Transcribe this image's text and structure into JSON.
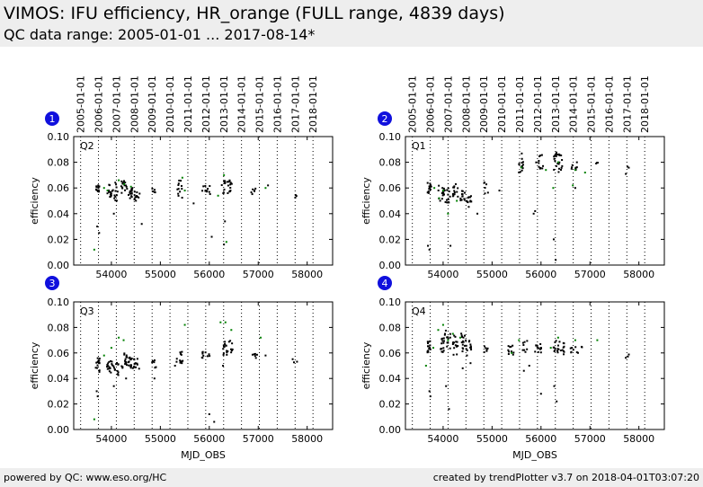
{
  "header": {
    "title": "VIMOS: IFU efficiency, HR_orange (FULL range, 4839 days)",
    "subtitle": "QC data range: 2005-01-01 ... 2017-08-14*"
  },
  "footer": {
    "left": "powered by QC: www.eso.org/HC",
    "right": "created by trendPlotter v3.7 on 2018-04-01T03:07:20"
  },
  "colors": {
    "main": "#000000",
    "highlight": "#008000",
    "badge": "#1010dd",
    "vline": "#000000"
  },
  "top_axis_labels": [
    "2005-01-01",
    "2006-01-01",
    "2007-01-01",
    "2008-01-01",
    "2009-01-01",
    "2010-01-01",
    "2011-01-01",
    "2012-01-01",
    "2013-01-01",
    "2014-01-01",
    "2015-01-01",
    "2016-01-01",
    "2017-01-01",
    "2018-01-01"
  ],
  "top_axis_mjd": [
    53371,
    53736,
    54101,
    54466,
    54832,
    55197,
    55562,
    55927,
    56293,
    56658,
    57023,
    57388,
    57754,
    58119
  ],
  "x_ticks": [
    54000,
    55000,
    56000,
    57000,
    58000
  ],
  "y_ticks": [
    0.0,
    0.02,
    0.04,
    0.06,
    0.08,
    0.1
  ],
  "xlim": [
    53230,
    58520
  ],
  "ylim": [
    0.0,
    0.1
  ],
  "chart_data": [
    {
      "panel": "1",
      "label": "Q2",
      "type": "scatter",
      "ylabel": "efficiency",
      "xlabel": "",
      "clusters": [
        {
          "x": [
            53680,
            53760
          ],
          "y": [
            0.056,
            0.062
          ],
          "n": 14
        },
        {
          "x": [
            53900,
            54020
          ],
          "y": [
            0.052,
            0.064
          ],
          "n": 14
        },
        {
          "x": [
            54030,
            54150
          ],
          "y": [
            0.05,
            0.065
          ],
          "n": 12
        },
        {
          "x": [
            54200,
            54320
          ],
          "y": [
            0.053,
            0.066
          ],
          "n": 16
        },
        {
          "x": [
            54350,
            54450
          ],
          "y": [
            0.052,
            0.06
          ],
          "n": 14
        },
        {
          "x": [
            54460,
            54580
          ],
          "y": [
            0.05,
            0.058
          ],
          "n": 12
        },
        {
          "x": [
            54830,
            54900
          ],
          "y": [
            0.055,
            0.06
          ],
          "n": 5
        },
        {
          "x": [
            55330,
            55480
          ],
          "y": [
            0.052,
            0.066
          ],
          "n": 12
        },
        {
          "x": [
            55850,
            56020
          ],
          "y": [
            0.055,
            0.062
          ],
          "n": 12
        },
        {
          "x": [
            56250,
            56480
          ],
          "y": [
            0.055,
            0.066
          ],
          "n": 22
        },
        {
          "x": [
            56850,
            57000
          ],
          "y": [
            0.055,
            0.06
          ],
          "n": 6
        },
        {
          "x": [
            57700,
            57800
          ],
          "y": [
            0.052,
            0.056
          ],
          "n": 3
        }
      ],
      "outliers_x": [
        53710,
        53750,
        54050,
        54620,
        55680,
        56050,
        56300,
        56320,
        57200
      ],
      "outliers_y": [
        0.03,
        0.025,
        0.04,
        0.032,
        0.048,
        0.022,
        0.016,
        0.034,
        0.062
      ],
      "green_x": [
        53650,
        53850,
        53920,
        54150,
        54260,
        54400,
        55450,
        55500,
        56180,
        56300,
        56350,
        57150
      ],
      "green_y": [
        0.012,
        0.06,
        0.058,
        0.066,
        0.063,
        0.061,
        0.068,
        0.058,
        0.054,
        0.07,
        0.018,
        0.06
      ]
    },
    {
      "panel": "2",
      "label": "Q1",
      "type": "scatter",
      "ylabel": "efficiency",
      "xlabel": "",
      "clusters": [
        {
          "x": [
            53680,
            53760
          ],
          "y": [
            0.055,
            0.064
          ],
          "n": 14
        },
        {
          "x": [
            53900,
            54020
          ],
          "y": [
            0.05,
            0.062
          ],
          "n": 14
        },
        {
          "x": [
            54030,
            54150
          ],
          "y": [
            0.048,
            0.06
          ],
          "n": 12
        },
        {
          "x": [
            54200,
            54320
          ],
          "y": [
            0.052,
            0.064
          ],
          "n": 14
        },
        {
          "x": [
            54350,
            54450
          ],
          "y": [
            0.05,
            0.058
          ],
          "n": 12
        },
        {
          "x": [
            54460,
            54580
          ],
          "y": [
            0.045,
            0.054
          ],
          "n": 12
        },
        {
          "x": [
            54830,
            54920
          ],
          "y": [
            0.055,
            0.066
          ],
          "n": 6
        },
        {
          "x": [
            55530,
            55640
          ],
          "y": [
            0.072,
            0.088
          ],
          "n": 14
        },
        {
          "x": [
            55900,
            56050
          ],
          "y": [
            0.075,
            0.088
          ],
          "n": 12
        },
        {
          "x": [
            56250,
            56450
          ],
          "y": [
            0.072,
            0.088
          ],
          "n": 24
        },
        {
          "x": [
            56600,
            56750
          ],
          "y": [
            0.074,
            0.08
          ],
          "n": 8
        },
        {
          "x": [
            57100,
            57200
          ],
          "y": [
            0.078,
            0.082
          ],
          "n": 3
        },
        {
          "x": [
            57700,
            57800
          ],
          "y": [
            0.07,
            0.078
          ],
          "n": 3
        }
      ],
      "outliers_x": [
        53690,
        53720,
        54150,
        54700,
        55150,
        55850,
        55880,
        56260,
        56300,
        56700
      ],
      "outliers_y": [
        0.015,
        0.012,
        0.015,
        0.04,
        0.058,
        0.04,
        0.042,
        0.02,
        0.004,
        0.06
      ],
      "green_x": [
        53820,
        53920,
        54000,
        54100,
        54280,
        55600,
        56100,
        56250,
        56350,
        56650,
        56700,
        56900
      ],
      "green_y": [
        0.06,
        0.052,
        0.058,
        0.04,
        0.05,
        0.076,
        0.074,
        0.06,
        0.08,
        0.062,
        0.074,
        0.072
      ]
    },
    {
      "panel": "3",
      "label": "Q3",
      "type": "scatter",
      "ylabel": "efficiency",
      "xlabel": "MJD_OBS",
      "clusters": [
        {
          "x": [
            53680,
            53760
          ],
          "y": [
            0.045,
            0.056
          ],
          "n": 14
        },
        {
          "x": [
            53900,
            54020
          ],
          "y": [
            0.044,
            0.054
          ],
          "n": 16
        },
        {
          "x": [
            54030,
            54150
          ],
          "y": [
            0.042,
            0.054
          ],
          "n": 12
        },
        {
          "x": [
            54200,
            54320
          ],
          "y": [
            0.048,
            0.06
          ],
          "n": 16
        },
        {
          "x": [
            54350,
            54450
          ],
          "y": [
            0.048,
            0.058
          ],
          "n": 14
        },
        {
          "x": [
            54460,
            54580
          ],
          "y": [
            0.046,
            0.056
          ],
          "n": 12
        },
        {
          "x": [
            54830,
            54920
          ],
          "y": [
            0.048,
            0.056
          ],
          "n": 6
        },
        {
          "x": [
            55330,
            55480
          ],
          "y": [
            0.052,
            0.062
          ],
          "n": 12
        },
        {
          "x": [
            55850,
            56020
          ],
          "y": [
            0.056,
            0.062
          ],
          "n": 10
        },
        {
          "x": [
            56250,
            56480
          ],
          "y": [
            0.058,
            0.07
          ],
          "n": 22
        },
        {
          "x": [
            56850,
            57000
          ],
          "y": [
            0.056,
            0.06
          ],
          "n": 6
        },
        {
          "x": [
            57700,
            57800
          ],
          "y": [
            0.052,
            0.056
          ],
          "n": 3
        }
      ],
      "outliers_x": [
        53700,
        53720,
        54050,
        54300,
        54880,
        55300,
        56000,
        56100,
        56280,
        57150
      ],
      "outliers_y": [
        0.03,
        0.026,
        0.034,
        0.04,
        0.04,
        0.05,
        0.012,
        0.006,
        0.05,
        0.058
      ],
      "green_x": [
        53650,
        53850,
        54000,
        54150,
        54250,
        55500,
        56230,
        56330,
        56450,
        57050
      ],
      "green_y": [
        0.008,
        0.058,
        0.064,
        0.072,
        0.07,
        0.082,
        0.084,
        0.084,
        0.078,
        0.072
      ]
    },
    {
      "panel": "4",
      "label": "Q4",
      "type": "scatter",
      "ylabel": "efficiency",
      "xlabel": "MJD_OBS",
      "clusters": [
        {
          "x": [
            53680,
            53760
          ],
          "y": [
            0.06,
            0.07
          ],
          "n": 14
        },
        {
          "x": [
            53900,
            54020
          ],
          "y": [
            0.06,
            0.072
          ],
          "n": 14
        },
        {
          "x": [
            54030,
            54150
          ],
          "y": [
            0.062,
            0.078
          ],
          "n": 12
        },
        {
          "x": [
            54200,
            54320
          ],
          "y": [
            0.058,
            0.074
          ],
          "n": 16
        },
        {
          "x": [
            54350,
            54450
          ],
          "y": [
            0.06,
            0.076
          ],
          "n": 14
        },
        {
          "x": [
            54460,
            54580
          ],
          "y": [
            0.058,
            0.072
          ],
          "n": 12
        },
        {
          "x": [
            54830,
            54920
          ],
          "y": [
            0.06,
            0.066
          ],
          "n": 6
        },
        {
          "x": [
            55330,
            55480
          ],
          "y": [
            0.058,
            0.066
          ],
          "n": 10
        },
        {
          "x": [
            55600,
            55720
          ],
          "y": [
            0.06,
            0.07
          ],
          "n": 8
        },
        {
          "x": [
            55850,
            56020
          ],
          "y": [
            0.06,
            0.068
          ],
          "n": 12
        },
        {
          "x": [
            56250,
            56480
          ],
          "y": [
            0.058,
            0.07
          ],
          "n": 22
        },
        {
          "x": [
            56600,
            56850
          ],
          "y": [
            0.06,
            0.066
          ],
          "n": 10
        },
        {
          "x": [
            57700,
            57800
          ],
          "y": [
            0.056,
            0.06
          ],
          "n": 3
        }
      ],
      "outliers_x": [
        53720,
        53740,
        54060,
        54120,
        54400,
        54560,
        55650,
        55760,
        56000,
        56270,
        56320
      ],
      "outliers_y": [
        0.03,
        0.026,
        0.034,
        0.016,
        0.048,
        0.052,
        0.046,
        0.05,
        0.028,
        0.034,
        0.022
      ],
      "green_x": [
        53650,
        53800,
        53900,
        54000,
        54100,
        54200,
        54350,
        55400,
        55550,
        56200,
        56350,
        56700,
        57150
      ],
      "green_y": [
        0.05,
        0.064,
        0.078,
        0.082,
        0.07,
        0.075,
        0.072,
        0.06,
        0.07,
        0.064,
        0.072,
        0.07,
        0.07
      ]
    }
  ]
}
